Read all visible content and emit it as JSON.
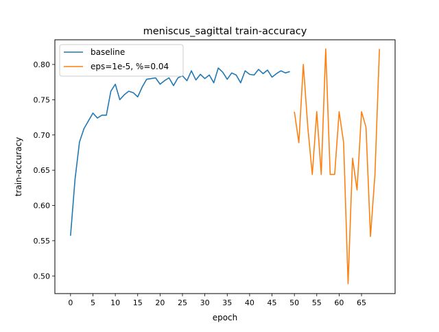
{
  "chart_data": {
    "type": "line",
    "title": "meniscus_sagittal train-accuracy",
    "xlabel": "epoch",
    "ylabel": "train-accuracy",
    "xlim": [
      -3.5,
      72.5
    ],
    "ylim": [
      0.475,
      0.835
    ],
    "xticks": [
      0,
      5,
      10,
      15,
      20,
      25,
      30,
      35,
      40,
      45,
      50,
      55,
      60,
      65
    ],
    "yticks": [
      0.5,
      0.55,
      0.6,
      0.65,
      0.7,
      0.75,
      0.8
    ],
    "legend_position": "top-left",
    "grid": false,
    "series": [
      {
        "name": "baseline",
        "color": "#1f77b4",
        "x": [
          0,
          1,
          2,
          3,
          4,
          5,
          6,
          7,
          8,
          9,
          10,
          11,
          12,
          13,
          14,
          15,
          16,
          17,
          18,
          19,
          20,
          21,
          22,
          23,
          24,
          25,
          26,
          27,
          28,
          29,
          30,
          31,
          32,
          33,
          34,
          35,
          36,
          37,
          38,
          39,
          40,
          41,
          42,
          43,
          44,
          45,
          46,
          47,
          48,
          49
        ],
        "y": [
          0.557,
          0.637,
          0.69,
          0.709,
          0.72,
          0.731,
          0.724,
          0.728,
          0.728,
          0.762,
          0.772,
          0.75,
          0.757,
          0.762,
          0.76,
          0.754,
          0.768,
          0.779,
          0.78,
          0.781,
          0.772,
          0.777,
          0.781,
          0.77,
          0.781,
          0.784,
          0.777,
          0.791,
          0.778,
          0.786,
          0.78,
          0.785,
          0.774,
          0.795,
          0.789,
          0.779,
          0.788,
          0.785,
          0.774,
          0.791,
          0.786,
          0.785,
          0.793,
          0.787,
          0.792,
          0.782,
          0.787,
          0.791,
          0.788,
          0.79
        ]
      },
      {
        "name": "eps=1e-5, %=0.04",
        "color": "#ff7f0e",
        "x": [
          50,
          51,
          52,
          53,
          54,
          55,
          56,
          57,
          58,
          59,
          60,
          61,
          62,
          63,
          64,
          65,
          66,
          67,
          68,
          69
        ],
        "y": [
          0.733,
          0.689,
          0.8,
          0.711,
          0.644,
          0.733,
          0.644,
          0.822,
          0.644,
          0.644,
          0.733,
          0.689,
          0.489,
          0.667,
          0.622,
          0.733,
          0.711,
          0.556,
          0.644,
          0.822
        ]
      }
    ]
  }
}
